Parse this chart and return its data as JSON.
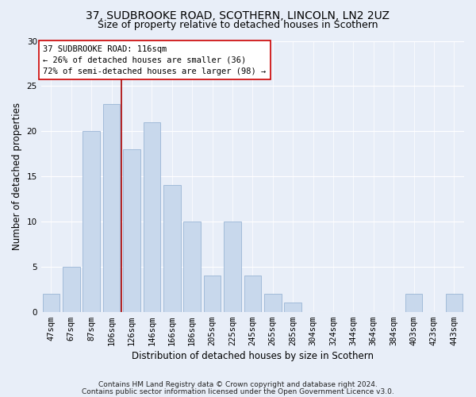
{
  "title1": "37, SUDBROOKE ROAD, SCOTHERN, LINCOLN, LN2 2UZ",
  "title2": "Size of property relative to detached houses in Scothern",
  "xlabel": "Distribution of detached houses by size in Scothern",
  "ylabel": "Number of detached properties",
  "categories": [
    "47sqm",
    "67sqm",
    "87sqm",
    "106sqm",
    "126sqm",
    "146sqm",
    "166sqm",
    "186sqm",
    "205sqm",
    "225sqm",
    "245sqm",
    "265sqm",
    "285sqm",
    "304sqm",
    "324sqm",
    "344sqm",
    "364sqm",
    "384sqm",
    "403sqm",
    "423sqm",
    "443sqm"
  ],
  "values": [
    2,
    5,
    20,
    23,
    18,
    21,
    14,
    10,
    4,
    10,
    4,
    2,
    1,
    0,
    0,
    0,
    0,
    0,
    2,
    0,
    2
  ],
  "bar_color": "#c8d8ec",
  "bar_edge_color": "#9ab5d5",
  "vline_x": 3.5,
  "vline_color": "#aa0000",
  "annotation_text": "37 SUDBROOKE ROAD: 116sqm\n← 26% of detached houses are smaller (36)\n72% of semi-detached houses are larger (98) →",
  "annotation_box_color": "#ffffff",
  "annotation_box_edge": "#cc0000",
  "ylim": [
    0,
    30
  ],
  "yticks": [
    0,
    5,
    10,
    15,
    20,
    25,
    30
  ],
  "footer1": "Contains HM Land Registry data © Crown copyright and database right 2024.",
  "footer2": "Contains public sector information licensed under the Open Government Licence v3.0.",
  "bg_color": "#e8eef8",
  "plot_bg_color": "#e8eef8",
  "grid_color": "#ffffff",
  "title1_fontsize": 10,
  "title2_fontsize": 9,
  "xlabel_fontsize": 8.5,
  "ylabel_fontsize": 8.5,
  "tick_fontsize": 7.5,
  "footer_fontsize": 6.5,
  "annot_fontsize": 7.5
}
